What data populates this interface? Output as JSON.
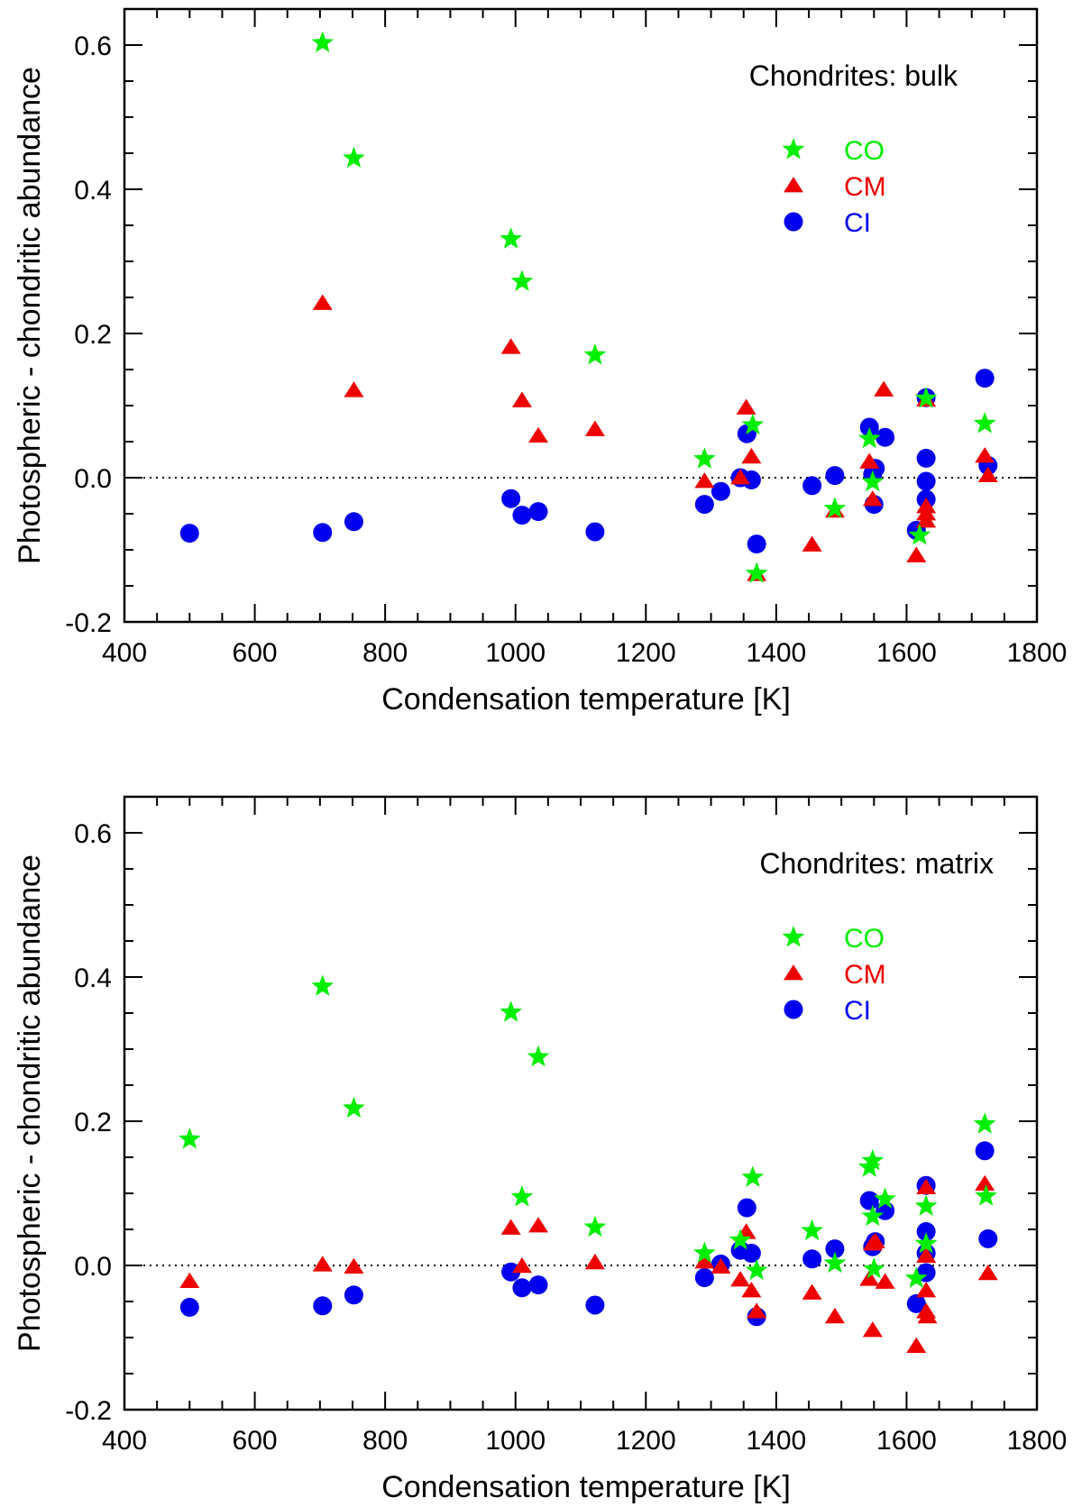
{
  "colors": {
    "CO": "#00ee00",
    "CM": "#ee0000",
    "CI": "#0000ee"
  },
  "chart_data": [
    {
      "type": "scatter",
      "title": "Chondrites: bulk",
      "xlabel": "Condensation temperature [K]",
      "ylabel": "Photospheric - chondritic abundance",
      "xlim": [
        400,
        1800
      ],
      "ylim": [
        -0.2,
        0.65
      ],
      "xticks": [
        400,
        600,
        800,
        1000,
        1200,
        1400,
        1600,
        1800
      ],
      "xtick_labels": [
        "400",
        "600",
        "800",
        "1000",
        "1200",
        "1400",
        "1600",
        "1800"
      ],
      "yticks": [
        -0.2,
        0.0,
        0.2,
        0.4,
        0.6
      ],
      "ytick_labels": [
        "-0.2",
        "0.0",
        "0.2",
        "0.4",
        "0.6"
      ],
      "reference_line": 0.0,
      "legend_position": "top-right",
      "series": [
        {
          "name": "CO",
          "marker": "star",
          "points": [
            [
              704,
              0.603
            ],
            [
              752,
              0.443
            ],
            [
              993,
              0.331
            ],
            [
              1010,
              0.272
            ],
            [
              1122,
              0.17
            ],
            [
              1290,
              0.026
            ],
            [
              1364,
              0.073
            ],
            [
              1370,
              -0.133
            ],
            [
              1490,
              -0.043
            ],
            [
              1543,
              0.054
            ],
            [
              1548,
              -0.006
            ],
            [
              1620,
              -0.08
            ],
            [
              1630,
              0.11
            ],
            [
              1720,
              0.075
            ]
          ]
        },
        {
          "name": "CM",
          "marker": "triangle",
          "points": [
            [
              704,
              0.242
            ],
            [
              752,
              0.121
            ],
            [
              993,
              0.181
            ],
            [
              1010,
              0.107
            ],
            [
              1035,
              0.058
            ],
            [
              1122,
              0.067
            ],
            [
              1290,
              -0.005
            ],
            [
              1345,
              0.0
            ],
            [
              1354,
              0.097
            ],
            [
              1362,
              0.029
            ],
            [
              1370,
              -0.134
            ],
            [
              1455,
              -0.093
            ],
            [
              1490,
              -0.046
            ],
            [
              1543,
              0.022
            ],
            [
              1548,
              -0.03
            ],
            [
              1565,
              0.122
            ],
            [
              1615,
              -0.108
            ],
            [
              1630,
              0.108
            ],
            [
              1630,
              -0.04
            ],
            [
              1630,
              -0.05
            ],
            [
              1630,
              -0.06
            ],
            [
              1720,
              0.03
            ],
            [
              1725,
              0.003
            ]
          ]
        },
        {
          "name": "CI",
          "marker": "circle",
          "points": [
            [
              500,
              -0.077
            ],
            [
              704,
              -0.076
            ],
            [
              752,
              -0.061
            ],
            [
              993,
              -0.029
            ],
            [
              1010,
              -0.052
            ],
            [
              1035,
              -0.047
            ],
            [
              1122,
              -0.075
            ],
            [
              1290,
              -0.037
            ],
            [
              1315,
              -0.019
            ],
            [
              1345,
              0.0
            ],
            [
              1355,
              0.061
            ],
            [
              1362,
              -0.003
            ],
            [
              1370,
              -0.092
            ],
            [
              1455,
              -0.011
            ],
            [
              1490,
              0.003
            ],
            [
              1543,
              0.07
            ],
            [
              1548,
              0.005
            ],
            [
              1550,
              -0.037
            ],
            [
              1552,
              0.013
            ],
            [
              1567,
              0.056
            ],
            [
              1615,
              -0.073
            ],
            [
              1630,
              0.111
            ],
            [
              1630,
              0.027
            ],
            [
              1630,
              -0.005
            ],
            [
              1630,
              -0.03
            ],
            [
              1720,
              0.138
            ],
            [
              1725,
              0.017
            ]
          ]
        }
      ]
    },
    {
      "type": "scatter",
      "title": "Chondrites: matrix",
      "xlabel": "Condensation temperature [K]",
      "ylabel": "Photospheric - chondritic abundance",
      "xlim": [
        400,
        1800
      ],
      "ylim": [
        -0.2,
        0.65
      ],
      "xticks": [
        400,
        600,
        800,
        1000,
        1200,
        1400,
        1600,
        1800
      ],
      "xtick_labels": [
        "400",
        "600",
        "800",
        "1000",
        "1200",
        "1400",
        "1600",
        "1800"
      ],
      "yticks": [
        -0.2,
        0.0,
        0.2,
        0.4,
        0.6
      ],
      "ytick_labels": [
        "-0.2",
        "0.0",
        "0.2",
        "0.4",
        "0.6"
      ],
      "reference_line": 0.0,
      "legend_position": "top-right",
      "series": [
        {
          "name": "CO",
          "marker": "star",
          "points": [
            [
              500,
              0.175
            ],
            [
              704,
              0.387
            ],
            [
              752,
              0.218
            ],
            [
              993,
              0.351
            ],
            [
              1010,
              0.095
            ],
            [
              1035,
              0.289
            ],
            [
              1122,
              0.053
            ],
            [
              1290,
              0.017
            ],
            [
              1345,
              0.035
            ],
            [
              1364,
              0.122
            ],
            [
              1370,
              -0.007
            ],
            [
              1455,
              0.048
            ],
            [
              1490,
              0.003
            ],
            [
              1543,
              0.136
            ],
            [
              1548,
              0.145
            ],
            [
              1548,
              0.068
            ],
            [
              1550,
              -0.005
            ],
            [
              1567,
              0.092
            ],
            [
              1615,
              -0.018
            ],
            [
              1630,
              0.082
            ],
            [
              1630,
              0.03
            ],
            [
              1720,
              0.196
            ],
            [
              1722,
              0.096
            ]
          ]
        },
        {
          "name": "CM",
          "marker": "triangle",
          "points": [
            [
              500,
              -0.022
            ],
            [
              704,
              0.001
            ],
            [
              752,
              -0.002
            ],
            [
              993,
              0.052
            ],
            [
              1010,
              -0.001
            ],
            [
              1035,
              0.055
            ],
            [
              1122,
              0.004
            ],
            [
              1290,
              0.005
            ],
            [
              1315,
              -0.002
            ],
            [
              1345,
              -0.02
            ],
            [
              1354,
              0.046
            ],
            [
              1362,
              -0.035
            ],
            [
              1370,
              -0.064
            ],
            [
              1455,
              -0.038
            ],
            [
              1490,
              -0.071
            ],
            [
              1543,
              -0.019
            ],
            [
              1548,
              0.03
            ],
            [
              1548,
              -0.09
            ],
            [
              1552,
              0.033
            ],
            [
              1567,
              -0.023
            ],
            [
              1615,
              -0.112
            ],
            [
              1630,
              0.108
            ],
            [
              1630,
              0.013
            ],
            [
              1630,
              -0.035
            ],
            [
              1630,
              -0.064
            ],
            [
              1632,
              -0.071
            ],
            [
              1720,
              0.113
            ],
            [
              1725,
              -0.011
            ]
          ]
        },
        {
          "name": "CI",
          "marker": "circle",
          "points": [
            [
              500,
              -0.058
            ],
            [
              704,
              -0.056
            ],
            [
              752,
              -0.041
            ],
            [
              993,
              -0.009
            ],
            [
              1010,
              -0.031
            ],
            [
              1035,
              -0.027
            ],
            [
              1122,
              -0.055
            ],
            [
              1290,
              -0.017
            ],
            [
              1315,
              0.002
            ],
            [
              1345,
              0.021
            ],
            [
              1355,
              0.08
            ],
            [
              1362,
              0.017
            ],
            [
              1370,
              -0.071
            ],
            [
              1455,
              0.009
            ],
            [
              1490,
              0.023
            ],
            [
              1543,
              0.09
            ],
            [
              1548,
              0.026
            ],
            [
              1552,
              0.033
            ],
            [
              1567,
              0.076
            ],
            [
              1615,
              -0.053
            ],
            [
              1630,
              0.111
            ],
            [
              1630,
              0.047
            ],
            [
              1630,
              0.017
            ],
            [
              1630,
              -0.01
            ],
            [
              1720,
              0.159
            ],
            [
              1725,
              0.037
            ]
          ]
        }
      ]
    }
  ]
}
